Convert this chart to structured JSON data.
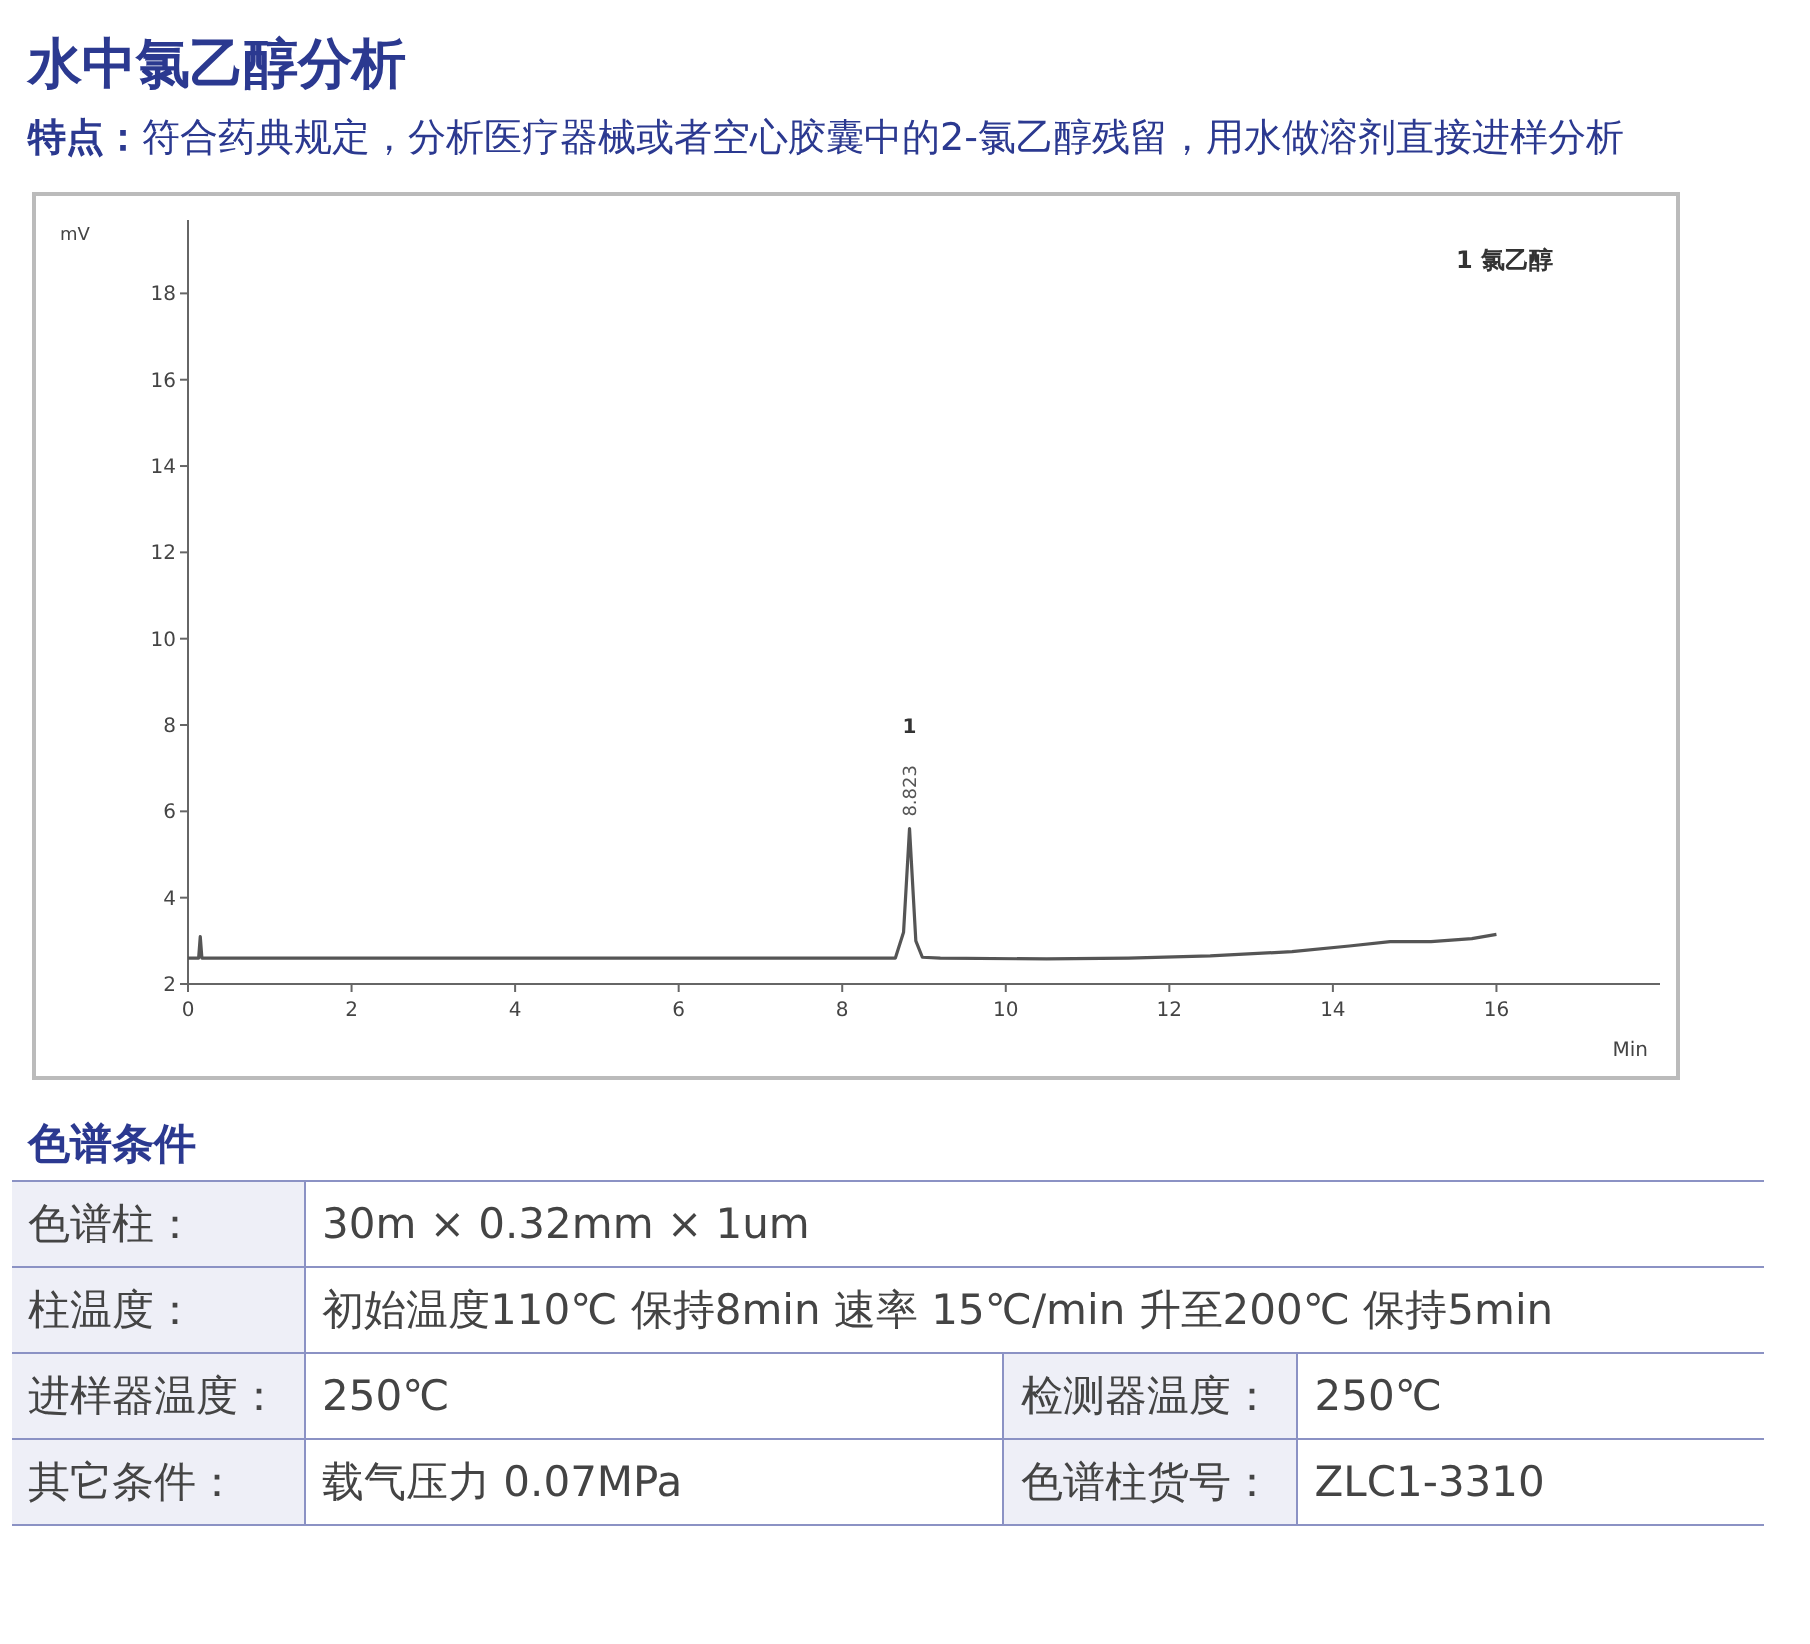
{
  "chart_data": {
    "type": "line",
    "title": "水中氯乙醇分析",
    "subtitle": "特点：符合药典规定，分析医疗器械或者空心胶囊中的2-氯乙醇残留，用水做溶剂直接进样分析",
    "xlabel": "Min",
    "ylabel": "mV",
    "series": [
      {
        "color": "#555555",
        "x": [
          0,
          0.13,
          0.15,
          0.17,
          8.65,
          8.75,
          8.823,
          8.9,
          8.98,
          9.2,
          10.5,
          11.5,
          12.5,
          13.5,
          14.2,
          14.7,
          15.2,
          15.7,
          16
        ],
        "values": [
          2.6,
          2.6,
          3.1,
          2.6,
          2.6,
          3.2,
          5.6,
          3.0,
          2.62,
          2.6,
          2.58,
          2.6,
          2.65,
          2.75,
          2.88,
          2.98,
          2.98,
          3.05,
          3.15
        ]
      }
    ],
    "xlim": [
      0,
      18
    ],
    "xticks": [
      0,
      2,
      4,
      6,
      8,
      10,
      12,
      14,
      16
    ],
    "ylim": [
      2,
      19.7
    ],
    "yticks": [
      2,
      4,
      6,
      8,
      10,
      12,
      14,
      16,
      18
    ],
    "grid": false,
    "annotations": [
      "1 氯乙醇",
      "1",
      {
        "text": "8.823",
        "x": 8.823,
        "y": 5.6
      },
      "色谱条件",
      "色谱柱：",
      "30m × 0.32mm × 1um",
      "柱温度：",
      "初始温度110℃ 保持8min  速率 15℃/min 升至200℃ 保持5min",
      "进样器温度：",
      "250℃",
      "检测器温度：",
      "250℃",
      "其它条件：",
      "载气压力 0.07MPa",
      "色谱柱货号：",
      "ZLC1-3310"
    ]
  }
}
